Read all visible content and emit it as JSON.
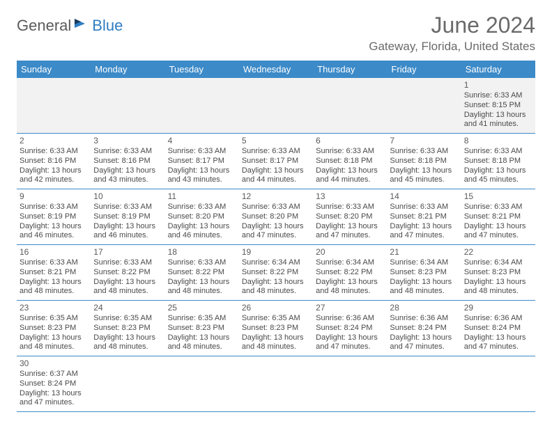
{
  "logo": {
    "text1": "General",
    "text2": "Blue"
  },
  "title": "June 2024",
  "location": "Gateway, Florida, United States",
  "colors": {
    "header_bg": "#3c8ac8",
    "header_text": "#ffffff",
    "body_text": "#4a4a4a",
    "title_text": "#6a6a6a",
    "week1_bg": "#f2f2f2",
    "row_border": "#3c8ac8"
  },
  "weekdays": [
    "Sunday",
    "Monday",
    "Tuesday",
    "Wednesday",
    "Thursday",
    "Friday",
    "Saturday"
  ],
  "weeks": [
    [
      null,
      null,
      null,
      null,
      null,
      null,
      {
        "n": "1",
        "sunrise": "6:33 AM",
        "sunset": "8:15 PM",
        "d1": "13 hours",
        "d2": "and 41 minutes."
      }
    ],
    [
      {
        "n": "2",
        "sunrise": "6:33 AM",
        "sunset": "8:16 PM",
        "d1": "13 hours",
        "d2": "and 42 minutes."
      },
      {
        "n": "3",
        "sunrise": "6:33 AM",
        "sunset": "8:16 PM",
        "d1": "13 hours",
        "d2": "and 43 minutes."
      },
      {
        "n": "4",
        "sunrise": "6:33 AM",
        "sunset": "8:17 PM",
        "d1": "13 hours",
        "d2": "and 43 minutes."
      },
      {
        "n": "5",
        "sunrise": "6:33 AM",
        "sunset": "8:17 PM",
        "d1": "13 hours",
        "d2": "and 44 minutes."
      },
      {
        "n": "6",
        "sunrise": "6:33 AM",
        "sunset": "8:18 PM",
        "d1": "13 hours",
        "d2": "and 44 minutes."
      },
      {
        "n": "7",
        "sunrise": "6:33 AM",
        "sunset": "8:18 PM",
        "d1": "13 hours",
        "d2": "and 45 minutes."
      },
      {
        "n": "8",
        "sunrise": "6:33 AM",
        "sunset": "8:18 PM",
        "d1": "13 hours",
        "d2": "and 45 minutes."
      }
    ],
    [
      {
        "n": "9",
        "sunrise": "6:33 AM",
        "sunset": "8:19 PM",
        "d1": "13 hours",
        "d2": "and 46 minutes."
      },
      {
        "n": "10",
        "sunrise": "6:33 AM",
        "sunset": "8:19 PM",
        "d1": "13 hours",
        "d2": "and 46 minutes."
      },
      {
        "n": "11",
        "sunrise": "6:33 AM",
        "sunset": "8:20 PM",
        "d1": "13 hours",
        "d2": "and 46 minutes."
      },
      {
        "n": "12",
        "sunrise": "6:33 AM",
        "sunset": "8:20 PM",
        "d1": "13 hours",
        "d2": "and 47 minutes."
      },
      {
        "n": "13",
        "sunrise": "6:33 AM",
        "sunset": "8:20 PM",
        "d1": "13 hours",
        "d2": "and 47 minutes."
      },
      {
        "n": "14",
        "sunrise": "6:33 AM",
        "sunset": "8:21 PM",
        "d1": "13 hours",
        "d2": "and 47 minutes."
      },
      {
        "n": "15",
        "sunrise": "6:33 AM",
        "sunset": "8:21 PM",
        "d1": "13 hours",
        "d2": "and 47 minutes."
      }
    ],
    [
      {
        "n": "16",
        "sunrise": "6:33 AM",
        "sunset": "8:21 PM",
        "d1": "13 hours",
        "d2": "and 48 minutes."
      },
      {
        "n": "17",
        "sunrise": "6:33 AM",
        "sunset": "8:22 PM",
        "d1": "13 hours",
        "d2": "and 48 minutes."
      },
      {
        "n": "18",
        "sunrise": "6:33 AM",
        "sunset": "8:22 PM",
        "d1": "13 hours",
        "d2": "and 48 minutes."
      },
      {
        "n": "19",
        "sunrise": "6:34 AM",
        "sunset": "8:22 PM",
        "d1": "13 hours",
        "d2": "and 48 minutes."
      },
      {
        "n": "20",
        "sunrise": "6:34 AM",
        "sunset": "8:22 PM",
        "d1": "13 hours",
        "d2": "and 48 minutes."
      },
      {
        "n": "21",
        "sunrise": "6:34 AM",
        "sunset": "8:23 PM",
        "d1": "13 hours",
        "d2": "and 48 minutes."
      },
      {
        "n": "22",
        "sunrise": "6:34 AM",
        "sunset": "8:23 PM",
        "d1": "13 hours",
        "d2": "and 48 minutes."
      }
    ],
    [
      {
        "n": "23",
        "sunrise": "6:35 AM",
        "sunset": "8:23 PM",
        "d1": "13 hours",
        "d2": "and 48 minutes."
      },
      {
        "n": "24",
        "sunrise": "6:35 AM",
        "sunset": "8:23 PM",
        "d1": "13 hours",
        "d2": "and 48 minutes."
      },
      {
        "n": "25",
        "sunrise": "6:35 AM",
        "sunset": "8:23 PM",
        "d1": "13 hours",
        "d2": "and 48 minutes."
      },
      {
        "n": "26",
        "sunrise": "6:35 AM",
        "sunset": "8:23 PM",
        "d1": "13 hours",
        "d2": "and 48 minutes."
      },
      {
        "n": "27",
        "sunrise": "6:36 AM",
        "sunset": "8:24 PM",
        "d1": "13 hours",
        "d2": "and 47 minutes."
      },
      {
        "n": "28",
        "sunrise": "6:36 AM",
        "sunset": "8:24 PM",
        "d1": "13 hours",
        "d2": "and 47 minutes."
      },
      {
        "n": "29",
        "sunrise": "6:36 AM",
        "sunset": "8:24 PM",
        "d1": "13 hours",
        "d2": "and 47 minutes."
      }
    ],
    [
      {
        "n": "30",
        "sunrise": "6:37 AM",
        "sunset": "8:24 PM",
        "d1": "13 hours",
        "d2": "and 47 minutes."
      },
      null,
      null,
      null,
      null,
      null,
      null
    ]
  ],
  "labels": {
    "sunrise": "Sunrise:",
    "sunset": "Sunset:",
    "daylight": "Daylight:"
  }
}
